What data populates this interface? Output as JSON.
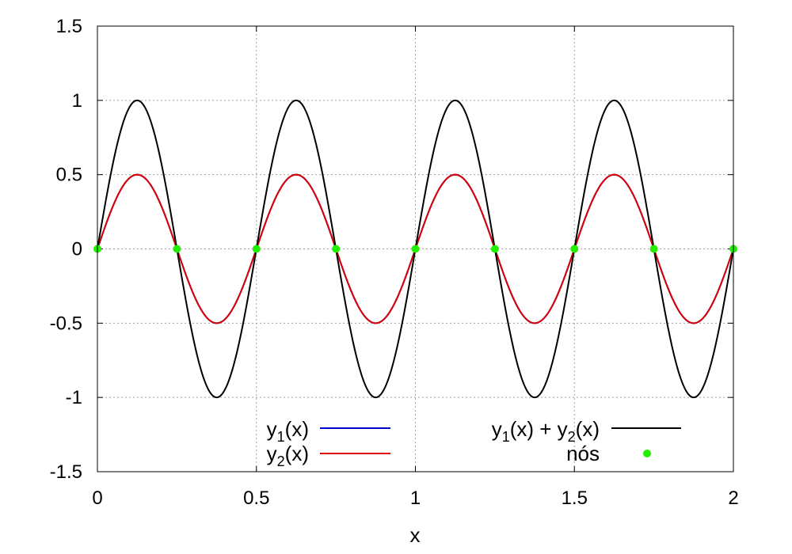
{
  "chart_data": {
    "type": "line",
    "title": "",
    "xlabel": "x",
    "ylabel": "",
    "xlim": [
      0,
      2
    ],
    "ylim": [
      -1.5,
      1.5
    ],
    "xticks": [
      0,
      0.5,
      1,
      1.5,
      2
    ],
    "xtick_labels": [
      "0",
      "0.5",
      "1",
      "1.5",
      "2"
    ],
    "yticks": [
      -1.5,
      -1,
      -0.5,
      0,
      0.5,
      1,
      1.5
    ],
    "ytick_labels": [
      "-1.5",
      "-1",
      "-0.5",
      "0",
      "0.5",
      "1",
      "1.5"
    ],
    "grid": true,
    "legend_position": "bottom",
    "series": [
      {
        "name": "y1(x)",
        "legend_parts": {
          "base": "y",
          "sub": "1",
          "rest": "(x)"
        },
        "color": "#0000cc",
        "amplitude": 0.5,
        "period": 0.5,
        "function": "0.5*sin(4*pi*x)"
      },
      {
        "name": "y2(x)",
        "legend_parts": {
          "base": "y",
          "sub": "2",
          "rest": "(x)"
        },
        "color": "#dd0000",
        "amplitude": 0.5,
        "period": 0.5,
        "function": "0.5*sin(4*pi*x)"
      },
      {
        "name": "y1(x) + y2(x)",
        "legend_parts": {
          "a_base": "y",
          "a_sub": "1",
          "a_rest": "(x) + ",
          "b_base": "y",
          "b_sub": "2",
          "b_rest": "(x)"
        },
        "color": "#000000",
        "amplitude": 1.0,
        "period": 0.5,
        "function": "sin(4*pi*x)"
      },
      {
        "name": "nós",
        "type": "scatter",
        "color": "#22ee00",
        "x": [
          0,
          0.25,
          0.5,
          0.75,
          1.0,
          1.25,
          1.5,
          1.75,
          2.0
        ],
        "y": [
          0,
          0,
          0,
          0,
          0,
          0,
          0,
          0,
          0
        ]
      }
    ]
  }
}
